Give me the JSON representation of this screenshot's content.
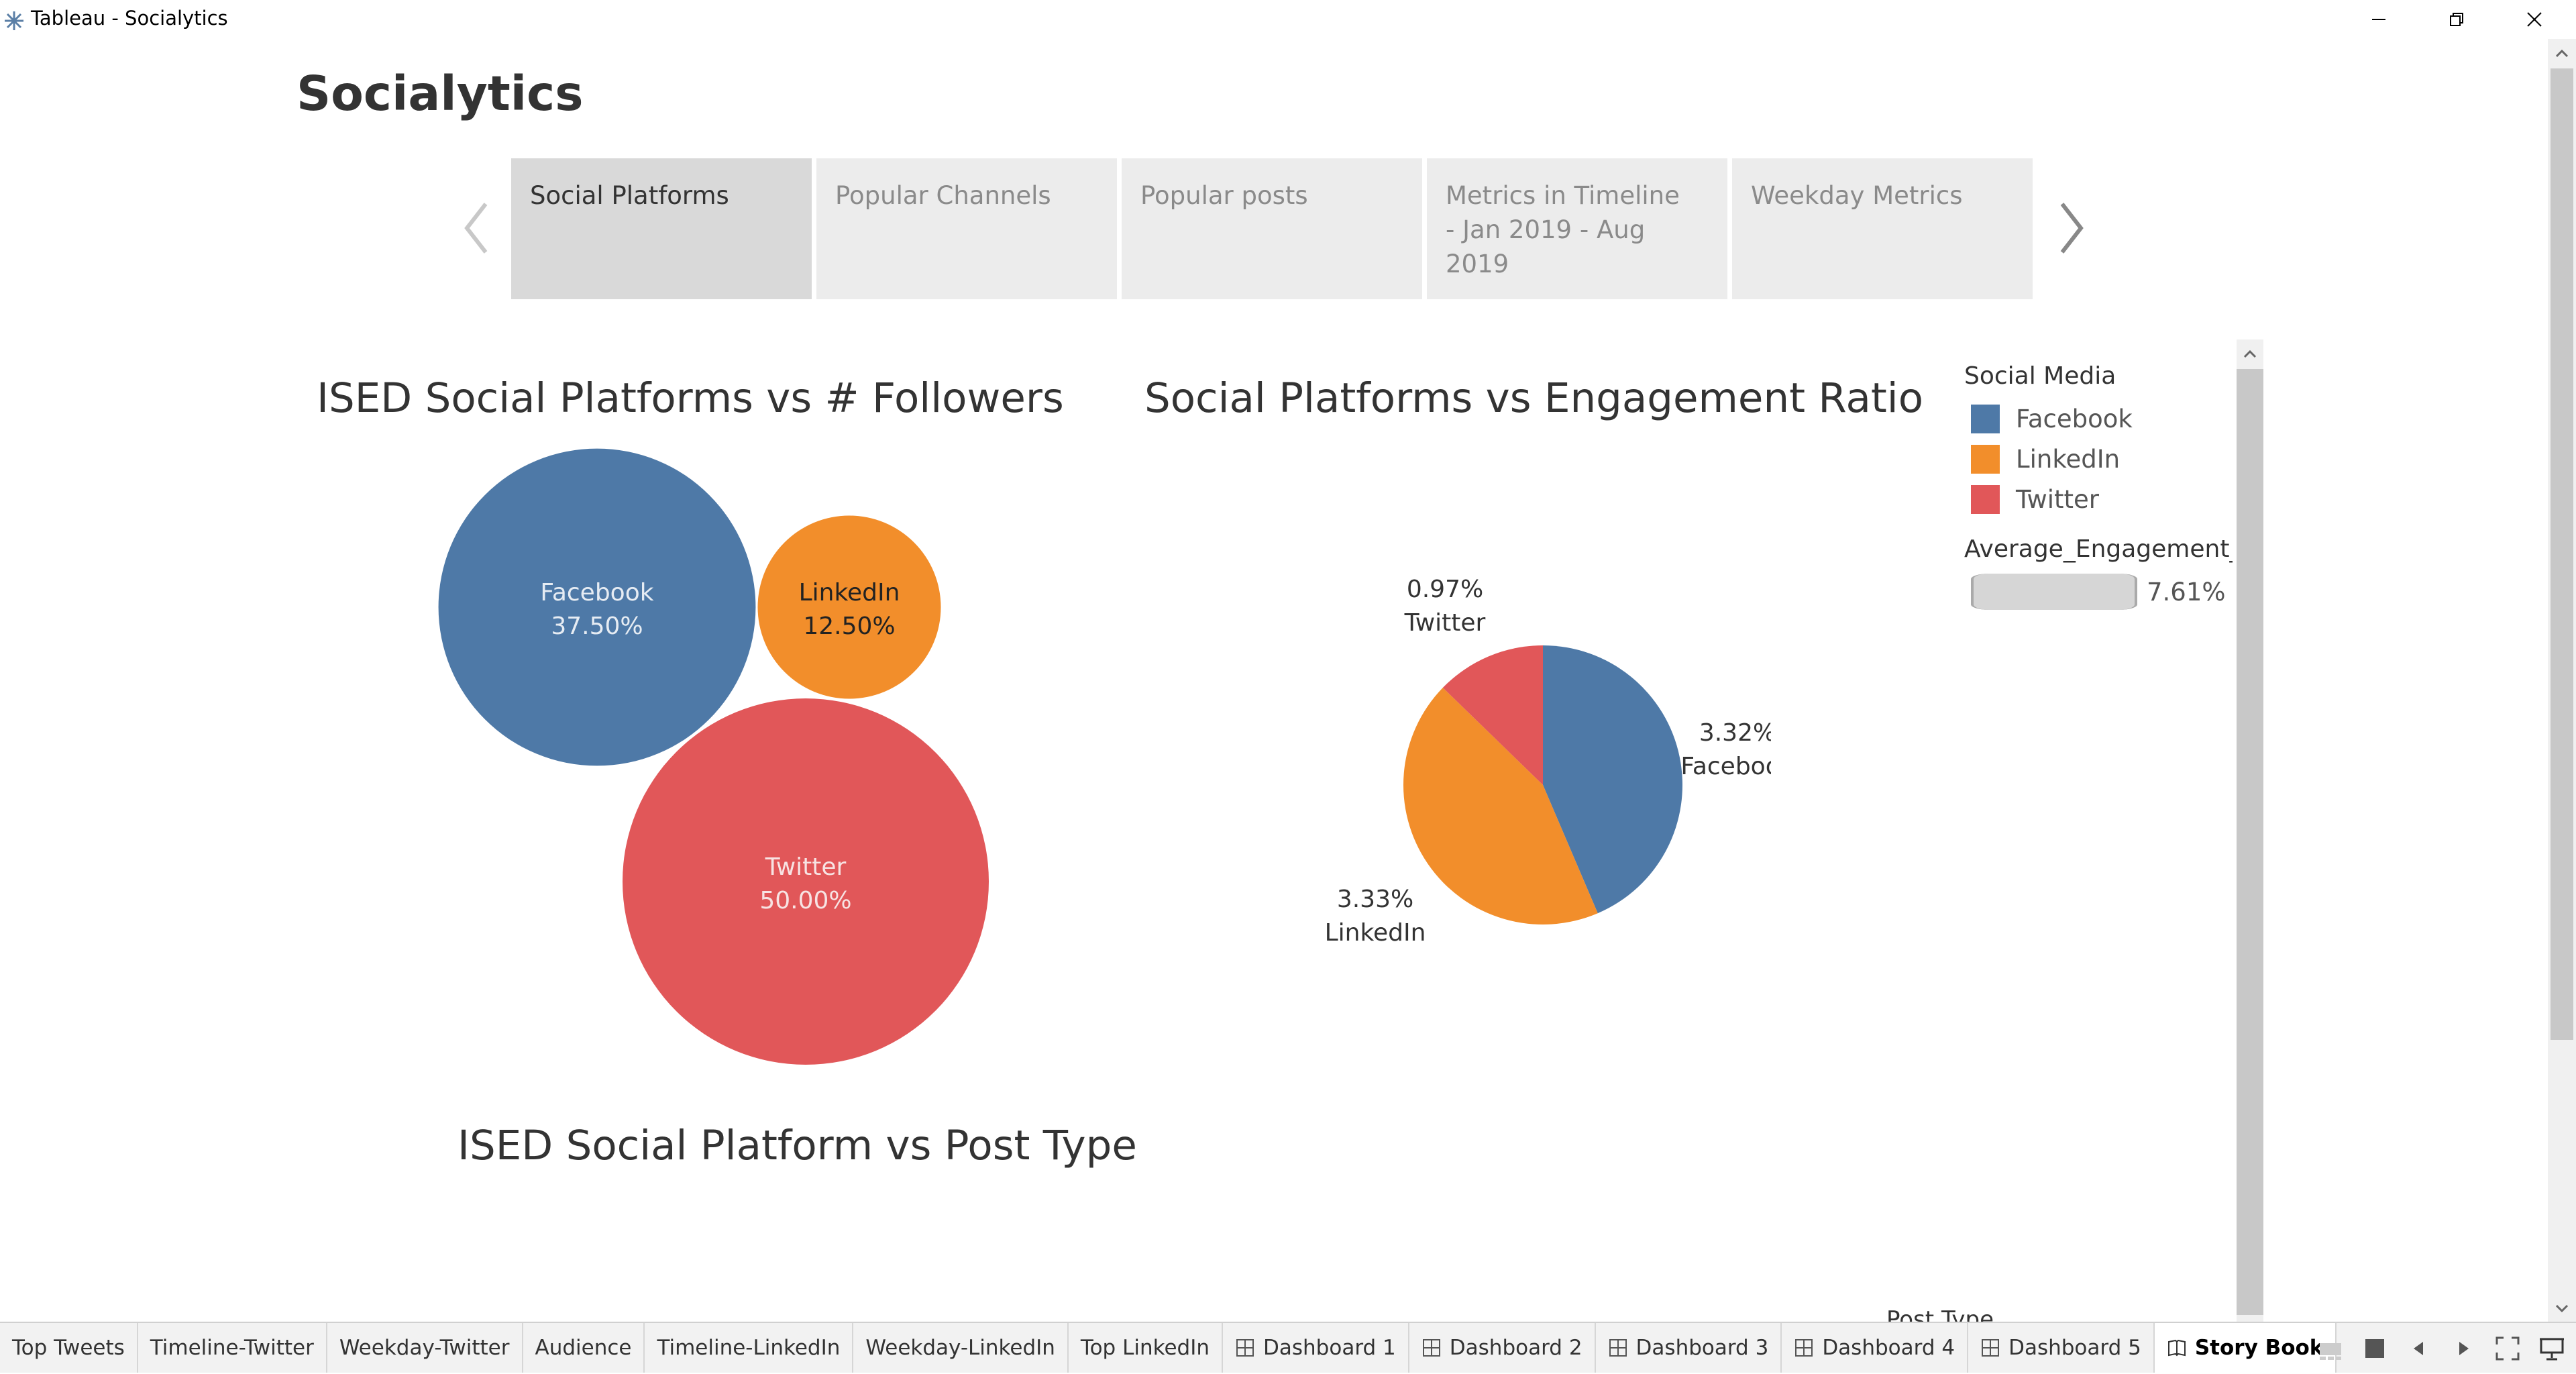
{
  "window": {
    "title": "Tableau - Socialytics",
    "app_icon": "tableau-logo-icon",
    "controls": [
      "minimize-icon",
      "restore-icon",
      "close-icon"
    ]
  },
  "story": {
    "title": "Socialytics",
    "prev_icon": "chevron-left-icon",
    "next_icon": "chevron-right-icon",
    "points": [
      {
        "label": "Social Platforms",
        "active": true
      },
      {
        "label": "Popular Channels",
        "active": false
      },
      {
        "label": "Popular posts",
        "active": false
      },
      {
        "label": "Metrics in Timeline\n- Jan 2019 - Aug 2019",
        "active": false
      },
      {
        "label": "Weekday Metrics",
        "active": false
      }
    ]
  },
  "followers_chart": {
    "title": "ISED Social Platforms vs  # Followers"
  },
  "engagement_chart": {
    "title": "Social Platforms vs Engagement Ratio"
  },
  "post_type_chart": {
    "title": "ISED Social Platform vs Post Type",
    "cut_off_label": "Post Type"
  },
  "legend": {
    "color_title": "Social Media",
    "items": [
      {
        "label": "Facebook",
        "color": "#4e79a7"
      },
      {
        "label": "LinkedIn",
        "color": "#f28e2b"
      },
      {
        "label": "Twitter",
        "color": "#e15759"
      }
    ],
    "size_title": "Average_Engagement_(",
    "size_value": "7.61%"
  },
  "chart_data": [
    {
      "type": "bubble",
      "title": "ISED Social Platforms vs  # Followers",
      "labels": [
        "Facebook",
        "LinkedIn",
        "Twitter"
      ],
      "values": [
        37.5,
        12.5,
        50.0
      ],
      "value_labels": [
        "37.50%",
        "12.50%",
        "50.00%"
      ],
      "colors": [
        "#4e79a7",
        "#f28e2b",
        "#e15759"
      ]
    },
    {
      "type": "pie",
      "title": "Social Platforms vs Engagement Ratio",
      "labels": [
        "Facebook",
        "LinkedIn",
        "Twitter"
      ],
      "values": [
        3.32,
        3.33,
        0.97
      ],
      "value_labels": [
        "3.32%",
        "3.33%",
        "0.97%"
      ],
      "colors": [
        "#4e79a7",
        "#f28e2b",
        "#e15759"
      ]
    }
  ],
  "tabs": {
    "items": [
      {
        "label": "Top Tweets",
        "icon": "",
        "active": false
      },
      {
        "label": "Timeline-Twitter",
        "icon": "",
        "active": false
      },
      {
        "label": "Weekday-Twitter",
        "icon": "",
        "active": false
      },
      {
        "label": "Audience",
        "icon": "",
        "active": false
      },
      {
        "label": "Timeline-LinkedIn",
        "icon": "",
        "active": false
      },
      {
        "label": "Weekday-LinkedIn",
        "icon": "",
        "active": false
      },
      {
        "label": "Top LinkedIn",
        "icon": "",
        "active": false
      },
      {
        "label": "Dashboard 1",
        "icon": "dashboard-grid-icon",
        "active": false
      },
      {
        "label": "Dashboard 2",
        "icon": "dashboard-grid-icon",
        "active": false
      },
      {
        "label": "Dashboard 3",
        "icon": "dashboard-grid-icon",
        "active": false
      },
      {
        "label": "Dashboard 4",
        "icon": "dashboard-grid-icon",
        "active": false
      },
      {
        "label": "Dashboard 5",
        "icon": "dashboard-grid-icon",
        "active": false
      },
      {
        "label": "Story Book",
        "icon": "story-book-icon",
        "active": true
      }
    ],
    "tools": [
      "filmstrip-view-icon",
      "tab-view-icon",
      "previous-sheet-icon",
      "next-sheet-icon",
      "fullscreen-icon",
      "presentation-mode-icon"
    ]
  }
}
